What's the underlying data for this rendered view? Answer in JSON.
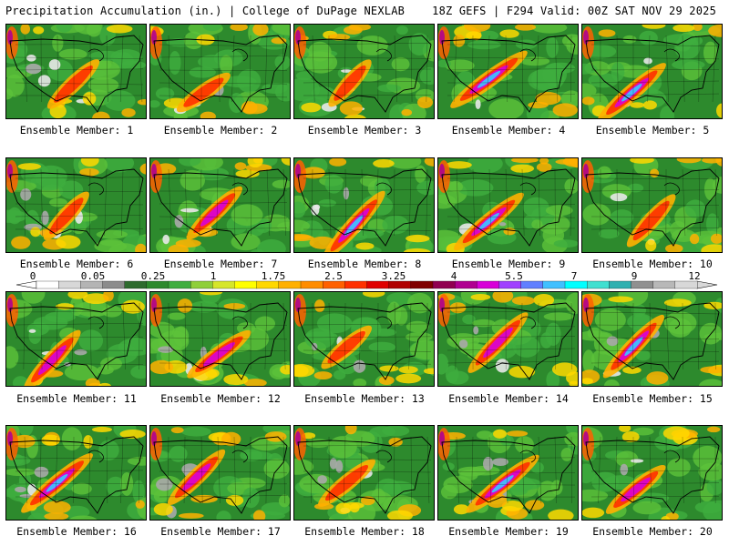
{
  "header": {
    "left": "Precipitation Accumulation (in.) | College of DuPage NEXLAB",
    "right": "18Z GEFS | F294 Valid: 00Z SAT NOV 29 2025"
  },
  "panel_label_prefix": "Ensemble Member: ",
  "members": [
    {
      "id": 1,
      "intensity": 0.45,
      "dry": 0.35
    },
    {
      "id": 2,
      "intensity": 0.35,
      "dry": 0.2
    },
    {
      "id": 3,
      "intensity": 0.3,
      "dry": 0.45
    },
    {
      "id": 4,
      "intensity": 0.9,
      "dry": 0.1
    },
    {
      "id": 5,
      "intensity": 0.8,
      "dry": 0.15
    },
    {
      "id": 6,
      "intensity": 0.35,
      "dry": 0.4
    },
    {
      "id": 7,
      "intensity": 0.55,
      "dry": 0.3
    },
    {
      "id": 8,
      "intensity": 0.85,
      "dry": 0.25
    },
    {
      "id": 9,
      "intensity": 0.8,
      "dry": 0.15
    },
    {
      "id": 10,
      "intensity": 0.45,
      "dry": 0.2
    },
    {
      "id": 11,
      "intensity": 0.65,
      "dry": 0.3
    },
    {
      "id": 12,
      "intensity": 0.6,
      "dry": 0.3
    },
    {
      "id": 13,
      "intensity": 0.35,
      "dry": 0.45
    },
    {
      "id": 14,
      "intensity": 0.7,
      "dry": 0.25
    },
    {
      "id": 15,
      "intensity": 0.75,
      "dry": 0.2
    },
    {
      "id": 16,
      "intensity": 0.85,
      "dry": 0.3
    },
    {
      "id": 17,
      "intensity": 0.6,
      "dry": 0.25
    },
    {
      "id": 18,
      "intensity": 0.5,
      "dry": 0.35
    },
    {
      "id": 19,
      "intensity": 0.85,
      "dry": 0.3
    },
    {
      "id": 20,
      "intensity": 0.55,
      "dry": 0.15
    }
  ],
  "colorbar": {
    "labels": [
      "0",
      "0.05",
      "0.25",
      "1",
      "1.75",
      "2.5",
      "3.25",
      "4",
      "5.5",
      "7",
      "9",
      "12"
    ],
    "colors": [
      "#ffffff",
      "#d8d8d8",
      "#b4b4b4",
      "#8c8c8c",
      "#2e6b2e",
      "#2d8a2d",
      "#3fae3f",
      "#8fcf3a",
      "#d6e62a",
      "#ffff00",
      "#ffd800",
      "#ffb000",
      "#ff8c00",
      "#ff6000",
      "#ff3000",
      "#e00000",
      "#b00000",
      "#800000",
      "#900050",
      "#b00090",
      "#d800d8",
      "#a040ff",
      "#6080ff",
      "#40c0ff",
      "#00ffff",
      "#40e0d0",
      "#30b0b0",
      "#909090",
      "#b8b8b8",
      "#d8d8d8"
    ]
  }
}
